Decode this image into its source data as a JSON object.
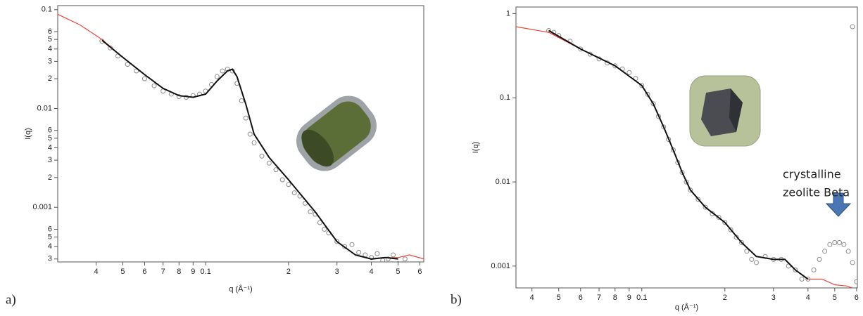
{
  "chart_data": [
    {
      "type": "scatter",
      "panel_label": "a)",
      "ylabel": "I(q)",
      "xlabel": "q (Å⁻¹)",
      "xscale": "log",
      "yscale": "log",
      "grid": false,
      "xlim": [
        0.029,
        0.62
      ],
      "ylim": [
        0.00028,
        0.11
      ],
      "xticks": [
        {
          "value": 0.04,
          "label": "4"
        },
        {
          "value": 0.05,
          "label": "5"
        },
        {
          "value": 0.06,
          "label": "6"
        },
        {
          "value": 0.07,
          "label": "7"
        },
        {
          "value": 0.08,
          "label": "8"
        },
        {
          "value": 0.09,
          "label": "9"
        },
        0.1,
        {
          "value": 0.2,
          "label": "2"
        },
        {
          "value": 0.3,
          "label": "3"
        },
        {
          "value": 0.4,
          "label": "4"
        },
        {
          "value": 0.5,
          "label": "5"
        },
        {
          "value": 0.6,
          "label": "6"
        }
      ],
      "yticks": [
        0.1,
        {
          "value": 0.06,
          "label": "6"
        },
        {
          "value": 0.05,
          "label": "5"
        },
        {
          "value": 0.04,
          "label": "4"
        },
        {
          "value": 0.03,
          "label": "3"
        },
        {
          "value": 0.02,
          "label": "2"
        },
        0.01,
        {
          "value": 0.006,
          "label": "6"
        },
        {
          "value": 0.005,
          "label": "5"
        },
        {
          "value": 0.004,
          "label": "4"
        },
        {
          "value": 0.003,
          "label": "3"
        },
        {
          "value": 0.002,
          "label": "2"
        },
        0.001,
        {
          "value": 0.0006,
          "label": "6"
        },
        {
          "value": 0.0005,
          "label": "5"
        },
        {
          "value": 0.0004,
          "label": "4"
        },
        {
          "value": 0.0003,
          "label": "3"
        }
      ],
      "series": [
        {
          "style": "markers",
          "color": "#8c8c8c",
          "x": [
            0.042,
            0.045,
            0.048,
            0.052,
            0.056,
            0.06,
            0.065,
            0.07,
            0.075,
            0.08,
            0.085,
            0.09,
            0.095,
            0.1,
            0.105,
            0.11,
            0.115,
            0.12,
            0.125,
            0.13,
            0.135,
            0.14,
            0.145,
            0.15,
            0.16,
            0.17,
            0.18,
            0.19,
            0.2,
            0.21,
            0.22,
            0.23,
            0.24,
            0.25,
            0.26,
            0.27,
            0.28,
            0.3,
            0.32,
            0.34,
            0.36,
            0.38,
            0.4,
            0.42,
            0.44,
            0.46,
            0.48,
            0.5,
            0.53,
            0.56,
            0.59,
            0.61
          ],
          "values": [
            0.048,
            0.041,
            0.034,
            0.028,
            0.024,
            0.02,
            0.017,
            0.015,
            0.014,
            0.0132,
            0.013,
            0.0135,
            0.014,
            0.015,
            0.0175,
            0.021,
            0.024,
            0.025,
            0.024,
            0.018,
            0.012,
            0.008,
            0.0055,
            0.0045,
            0.0033,
            0.0028,
            0.0024,
            0.0019,
            0.0017,
            0.0014,
            0.0013,
            0.0011,
            0.0009,
            0.00085,
            0.0007,
            0.0006,
            0.00055,
            0.00045,
            0.0004,
            0.00042,
            0.00035,
            0.00033,
            0.00031,
            0.00034,
            0.00029,
            0.0003,
            0.00033,
            0.00027,
            0.0003,
            0.00026,
            0.00024,
            0.00023
          ]
        },
        {
          "style": "line",
          "color": "#e8463c",
          "x": [
            0.029,
            0.035,
            0.042,
            0.05,
            0.06,
            0.07,
            0.08,
            0.09,
            0.1,
            0.11,
            0.12,
            0.125,
            0.13,
            0.14,
            0.15,
            0.17,
            0.2,
            0.25,
            0.3,
            0.35,
            0.4,
            0.45,
            0.5,
            0.55,
            0.62
          ],
          "values": [
            0.09,
            0.07,
            0.05,
            0.033,
            0.022,
            0.016,
            0.0135,
            0.013,
            0.014,
            0.019,
            0.024,
            0.025,
            0.021,
            0.011,
            0.0055,
            0.0032,
            0.0019,
            0.0009,
            0.00045,
            0.00033,
            0.0003,
            0.00031,
            0.00031,
            0.00033,
            0.0003
          ]
        },
        {
          "style": "line",
          "color": "#111111",
          "x": [
            0.042,
            0.05,
            0.06,
            0.07,
            0.08,
            0.09,
            0.1,
            0.11,
            0.12,
            0.125,
            0.13,
            0.14,
            0.15,
            0.17,
            0.2,
            0.25,
            0.3,
            0.35,
            0.4,
            0.45,
            0.5
          ],
          "values": [
            0.049,
            0.033,
            0.022,
            0.016,
            0.0135,
            0.013,
            0.014,
            0.019,
            0.024,
            0.025,
            0.021,
            0.011,
            0.0055,
            0.0032,
            0.0019,
            0.0009,
            0.00045,
            0.00033,
            0.0003,
            0.00031,
            0.0003
          ]
        }
      ]
    },
    {
      "type": "scatter",
      "panel_label": "b)",
      "ylabel": "I(q)",
      "xlabel": "q (Å⁻¹)",
      "xscale": "log",
      "yscale": "log",
      "grid": false,
      "xlim": [
        0.035,
        0.604
      ],
      "ylim": [
        0.00055,
        1.2
      ],
      "xticks": [
        {
          "value": 0.04,
          "label": "4"
        },
        {
          "value": 0.05,
          "label": "5"
        },
        {
          "value": 0.06,
          "label": "6"
        },
        {
          "value": 0.07,
          "label": "7"
        },
        {
          "value": 0.08,
          "label": "8"
        },
        {
          "value": 0.09,
          "label": "9"
        },
        0.1,
        {
          "value": 0.2,
          "label": "2"
        },
        {
          "value": 0.3,
          "label": "3"
        },
        {
          "value": 0.4,
          "label": "4"
        },
        {
          "value": 0.5,
          "label": "5"
        },
        {
          "value": 0.6,
          "label": "6"
        }
      ],
      "yticks": [
        1,
        0.1,
        0.01,
        0.001
      ],
      "annotations": [
        "crystalline",
        "zeolite Beta"
      ],
      "series": [
        {
          "style": "markers",
          "color": "#8c8c8c",
          "x": [
            0.046,
            0.048,
            0.05,
            0.055,
            0.06,
            0.065,
            0.07,
            0.075,
            0.08,
            0.085,
            0.09,
            0.095,
            0.1,
            0.105,
            0.11,
            0.115,
            0.12,
            0.125,
            0.13,
            0.135,
            0.14,
            0.145,
            0.15,
            0.16,
            0.17,
            0.18,
            0.19,
            0.2,
            0.21,
            0.22,
            0.23,
            0.24,
            0.25,
            0.26,
            0.28,
            0.3,
            0.32,
            0.34,
            0.36,
            0.38,
            0.4,
            0.42,
            0.44,
            0.46,
            0.48,
            0.5,
            0.52,
            0.54,
            0.56,
            0.58,
            0.6,
            0.58
          ],
          "values": [
            0.63,
            0.6,
            0.55,
            0.47,
            0.38,
            0.33,
            0.29,
            0.26,
            0.24,
            0.22,
            0.2,
            0.17,
            0.14,
            0.11,
            0.085,
            0.06,
            0.045,
            0.032,
            0.024,
            0.017,
            0.013,
            0.01,
            0.008,
            0.0062,
            0.005,
            0.0042,
            0.0038,
            0.0033,
            0.0027,
            0.0022,
            0.0019,
            0.0015,
            0.0012,
            0.0011,
            0.0013,
            0.0012,
            0.0012,
            0.001,
            0.0009,
            0.0007,
            0.0007,
            0.0009,
            0.0012,
            0.0015,
            0.0018,
            0.0019,
            0.0019,
            0.0018,
            0.0015,
            0.0011,
            0.00065,
            0.7
          ]
        },
        {
          "style": "line",
          "color": "#e8463c",
          "x": [
            0.035,
            0.046,
            0.06,
            0.08,
            0.1,
            0.11,
            0.12,
            0.13,
            0.14,
            0.15,
            0.17,
            0.2,
            0.23,
            0.26,
            0.3,
            0.33,
            0.36,
            0.4,
            0.45,
            0.5,
            0.55,
            0.6
          ],
          "values": [
            0.7,
            0.6,
            0.38,
            0.24,
            0.14,
            0.085,
            0.045,
            0.024,
            0.013,
            0.008,
            0.005,
            0.0033,
            0.0019,
            0.0013,
            0.0012,
            0.0012,
            0.0009,
            0.0007,
            0.0007,
            0.0006,
            0.00058,
            0.00053
          ]
        },
        {
          "style": "line",
          "color": "#111111",
          "x": [
            0.046,
            0.06,
            0.08,
            0.1,
            0.11,
            0.12,
            0.13,
            0.14,
            0.15,
            0.17,
            0.2,
            0.23,
            0.26,
            0.3,
            0.33,
            0.36,
            0.4
          ],
          "values": [
            0.63,
            0.38,
            0.24,
            0.14,
            0.085,
            0.045,
            0.024,
            0.013,
            0.008,
            0.005,
            0.0033,
            0.0019,
            0.0013,
            0.0012,
            0.0012,
            0.0009,
            0.0007
          ]
        }
      ]
    }
  ]
}
